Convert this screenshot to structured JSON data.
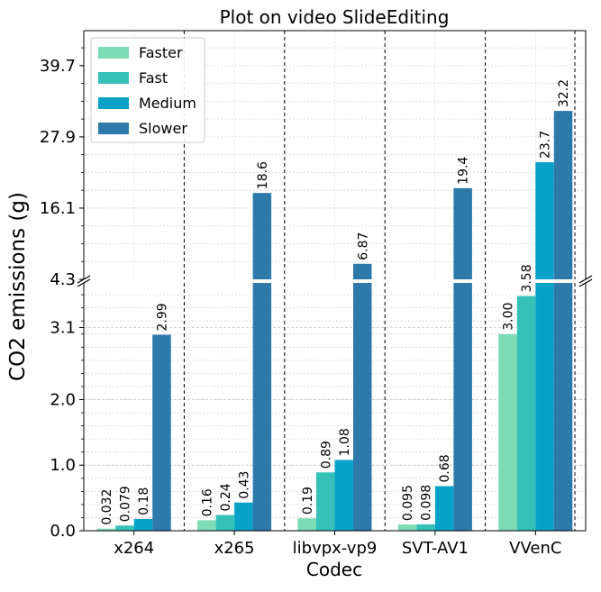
{
  "chart_data": {
    "type": "bar",
    "title": "Plot on video SlideEditing",
    "xlabel": "Codec",
    "ylabel": "CO2 emissions (g)",
    "categories": [
      "x264",
      "x265",
      "libvpx-vp9",
      "SVT-AV1",
      "VVenC"
    ],
    "series": [
      {
        "name": "Faster",
        "color": "#7ddbb5",
        "values": [
          0.032,
          0.16,
          0.19,
          0.095,
          3.0
        ],
        "labels": [
          "0.032",
          "0.16",
          "0.19",
          "0.095",
          "3.00"
        ]
      },
      {
        "name": "Fast",
        "color": "#36c1b8",
        "values": [
          0.079,
          0.24,
          0.89,
          0.098,
          3.58
        ],
        "labels": [
          "0.079",
          "0.24",
          "0.89",
          "0.098",
          "3.58"
        ]
      },
      {
        "name": "Medium",
        "color": "#08a2c9",
        "values": [
          0.18,
          0.43,
          1.08,
          0.68,
          23.7
        ],
        "labels": [
          "0.18",
          "0.43",
          "1.08",
          "0.68",
          "23.7"
        ]
      },
      {
        "name": "Slower",
        "color": "#2c79aa",
        "values": [
          2.99,
          18.6,
          6.87,
          19.4,
          32.2
        ],
        "labels": [
          "2.99",
          "18.6",
          "6.87",
          "19.4",
          "32.2"
        ]
      }
    ],
    "y_axis_break": true,
    "lower_ylim": [
      0,
      3.78
    ],
    "upper_ylim": [
      4.3,
      45.5
    ],
    "lower_yticks": [
      0.0,
      1.0,
      2.0,
      3.1
    ],
    "lower_ytick_labels": [
      "0.0",
      "1.0",
      "2.0",
      "3.1"
    ],
    "upper_yticks": [
      4.3,
      16.1,
      27.9,
      39.7
    ],
    "upper_ytick_labels": [
      "4.3",
      "16.1",
      "27.9",
      "39.7"
    ],
    "grid": true,
    "legend_position": "top-left"
  }
}
